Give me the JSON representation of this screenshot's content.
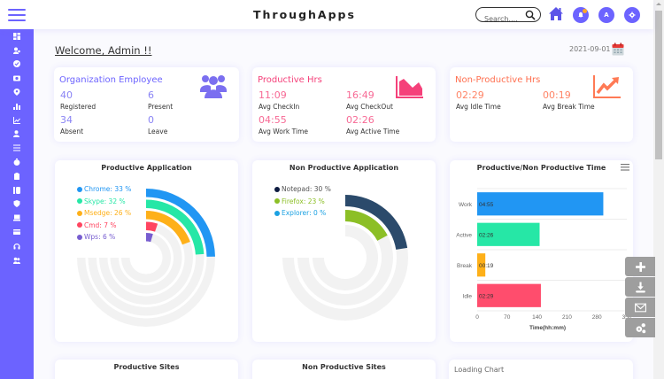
{
  "header": {
    "title": "ThroughApps",
    "search_placeholder": "Search....",
    "avatar_letter": "A"
  },
  "sidebar": {
    "items": [
      {
        "icon": "dashboard-icon"
      },
      {
        "icon": "users-icon"
      },
      {
        "icon": "check-circle-icon"
      },
      {
        "icon": "camera-icon"
      },
      {
        "icon": "location-pin-icon"
      },
      {
        "icon": "bar-chart-icon"
      },
      {
        "icon": "line-chart-icon"
      },
      {
        "icon": "user-add-icon"
      },
      {
        "icon": "list-icon"
      },
      {
        "icon": "stopwatch-icon"
      },
      {
        "icon": "clipboard-icon"
      },
      {
        "icon": "id-card-icon"
      },
      {
        "icon": "shield-icon"
      },
      {
        "icon": "laptop-icon"
      },
      {
        "icon": "credit-card-icon"
      },
      {
        "icon": "headset-icon"
      },
      {
        "icon": "team-icon"
      }
    ]
  },
  "welcome": "Welcome, Admin !!",
  "date": "2021-09-01",
  "cards": {
    "org": {
      "title": "Organization Employee",
      "color": "#6c63ff",
      "stats": [
        {
          "value": "40",
          "label": "Registered"
        },
        {
          "value": "6",
          "label": "Present"
        },
        {
          "value": "34",
          "label": "Absent"
        },
        {
          "value": "0",
          "label": "Leave"
        }
      ]
    },
    "productive": {
      "title": "Productive Hrs",
      "color": "#f5417a",
      "stats": [
        {
          "value": "11:09",
          "label": "Avg CheckIn"
        },
        {
          "value": "16:49",
          "label": "Avg CheckOut"
        },
        {
          "value": "04:55",
          "label": "Avg Work Time"
        },
        {
          "value": "02:26",
          "label": "Avg Active Time"
        }
      ]
    },
    "nonproductive": {
      "title": "Non-Productive Hrs",
      "color": "#ff6f4f",
      "stats": [
        {
          "value": "02:29",
          "label": "Avg Idle Time"
        },
        {
          "value": "00:19",
          "label": "Avg Break Time"
        }
      ]
    }
  },
  "chart_data": [
    {
      "type": "radialBar",
      "title": "Productive Application",
      "series": [
        {
          "name": "Chrome",
          "value": 33,
          "color": "#2196f3",
          "label": "Chrome: 33 %"
        },
        {
          "name": "Skype",
          "value": 32,
          "color": "#26e7a6",
          "label": "Skype: 32 %"
        },
        {
          "name": "Msedge",
          "value": 26,
          "color": "#feb019",
          "label": "Msedge: 26 %"
        },
        {
          "name": "Cmd",
          "value": 7,
          "color": "#ff4560",
          "label": "Cmd: 7 %"
        },
        {
          "name": "Wps",
          "value": 6,
          "color": "#775dd0",
          "label": "Wps: 6 %"
        }
      ],
      "max": 100,
      "sweep_degrees": 270,
      "legend": "top-left"
    },
    {
      "type": "radialBar",
      "title": "Non Productive Application",
      "series": [
        {
          "name": "Notepad",
          "value": 30,
          "color": "#2b4a6b",
          "label": "Notepad: 30 %"
        },
        {
          "name": "Firefox",
          "value": 23,
          "color": "#8cbf26",
          "label": "Firefox: 23 %"
        },
        {
          "name": "Explorer",
          "value": 0,
          "color": "#1ba1e2",
          "label": "Explorer: 0 %"
        }
      ],
      "legend_colors": [
        "#0d1b40",
        "#8cbf26",
        "#1ba1e2"
      ],
      "max": 100,
      "sweep_degrees": 270,
      "legend": "top-left"
    },
    {
      "type": "bar",
      "orientation": "horizontal",
      "title": "Productive/Non Productive Time",
      "categories": [
        "Work",
        "Active",
        "Break",
        "Idle"
      ],
      "values": [
        295,
        146,
        19,
        149
      ],
      "data_labels": [
        "04:55",
        "02:26",
        "00:19",
        "02:29"
      ],
      "colors": [
        "#2196f3",
        "#26e7a6",
        "#feb019",
        "#ff4d6d"
      ],
      "xlabel": "Time(hh:mm)",
      "ylabel": "",
      "xlim": [
        0,
        350
      ],
      "xticks": [
        "0",
        "70",
        "140",
        "210",
        "280",
        "350"
      ],
      "grid": true
    }
  ],
  "bottom": {
    "productive_sites": "Productive Sites",
    "non_productive_sites": "Non Productive Sites",
    "loading": "Loading Chart"
  }
}
